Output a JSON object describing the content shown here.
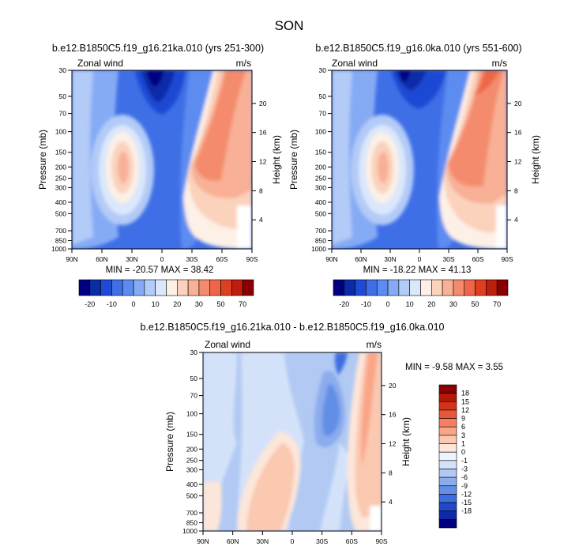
{
  "figure_title": "SON",
  "chart_data": [
    {
      "id": "panel_a",
      "type": "heatmap",
      "title": "b.e12.B1850C5.f19_g16.21ka.010 (yrs 251-300)",
      "left_label": "Zonal wind",
      "right_label": "m/s",
      "ylabel": "Pressure (mb)",
      "ylabel_right": "Height (km)",
      "x_ticks": [
        "90N",
        "60N",
        "30N",
        "0",
        "30S",
        "60S",
        "90S"
      ],
      "x_values": [
        90,
        60,
        30,
        0,
        -30,
        -60,
        -90
      ],
      "y_ticks": [
        "30",
        "50",
        "70",
        "100",
        "150",
        "200",
        "250",
        "300",
        "400",
        "500",
        "700",
        "850",
        "1000"
      ],
      "y_values": [
        30,
        50,
        70,
        100,
        150,
        200,
        250,
        300,
        400,
        500,
        700,
        850,
        1000
      ],
      "height_ticks": [
        "20",
        "16",
        "12",
        "8",
        "4"
      ],
      "height_values": [
        20,
        16,
        12,
        8,
        4
      ],
      "stats": "MIN = -20.57  MAX = 38.42",
      "min": -20.57,
      "max": 38.42,
      "features": [
        {
          "lat": 40,
          "p": 200,
          "value": 22
        },
        {
          "lat": -52,
          "p": 200,
          "value": 36
        },
        {
          "lat": -58,
          "p": 50,
          "value": 38.4
        },
        {
          "lat": 5,
          "p": 35,
          "value": -20.6
        }
      ]
    },
    {
      "id": "panel_b",
      "type": "heatmap",
      "title": "b.e12.B1850C5.f19_g16.0ka.010 (yrs 551-600)",
      "left_label": "Zonal wind",
      "right_label": "m/s",
      "ylabel": "Pressure (mb)",
      "ylabel_right": "Height (km)",
      "x_ticks": [
        "90N",
        "60N",
        "30N",
        "0",
        "30S",
        "60S",
        "90S"
      ],
      "x_values": [
        90,
        60,
        30,
        0,
        -30,
        -60,
        -90
      ],
      "y_ticks": [
        "30",
        "50",
        "70",
        "100",
        "150",
        "200",
        "250",
        "300",
        "400",
        "500",
        "700",
        "850",
        "1000"
      ],
      "y_values": [
        30,
        50,
        70,
        100,
        150,
        200,
        250,
        300,
        400,
        500,
        700,
        850,
        1000
      ],
      "height_ticks": [
        "20",
        "16",
        "12",
        "8",
        "4"
      ],
      "height_values": [
        20,
        16,
        12,
        8,
        4
      ],
      "stats": "MIN = -18.22  MAX = 41.13",
      "min": -18.22,
      "max": 41.13,
      "features": [
        {
          "lat": 40,
          "p": 200,
          "value": 22
        },
        {
          "lat": -50,
          "p": 200,
          "value": 38
        },
        {
          "lat": -60,
          "p": 50,
          "value": 41.1
        },
        {
          "lat": 5,
          "p": 35,
          "value": -18.2
        }
      ]
    },
    {
      "id": "panel_diff",
      "type": "heatmap",
      "title": "b.e12.B1850C5.f19_g16.21ka.010 - b.e12.B1850C5.f19_g16.0ka.010",
      "left_label": "Zonal wind",
      "right_label": "m/s",
      "ylabel": "Pressure (mb)",
      "ylabel_right": "Height (km)",
      "x_ticks": [
        "90N",
        "60N",
        "30N",
        "0",
        "30S",
        "60S",
        "90S"
      ],
      "x_values": [
        90,
        60,
        30,
        0,
        -30,
        -60,
        -90
      ],
      "y_ticks": [
        "30",
        "50",
        "70",
        "100",
        "150",
        "200",
        "250",
        "300",
        "400",
        "500",
        "700",
        "850",
        "1000"
      ],
      "y_values": [
        30,
        50,
        70,
        100,
        150,
        200,
        250,
        300,
        400,
        500,
        700,
        850,
        1000
      ],
      "height_ticks": [
        "20",
        "16",
        "12",
        "8",
        "4"
      ],
      "height_values": [
        20,
        16,
        12,
        8,
        4
      ],
      "stats": "MIN =  -9.58  MAX =   3.55",
      "min": -9.58,
      "max": 3.55,
      "features": [
        {
          "lat": 15,
          "p": 300,
          "value": 2
        },
        {
          "lat": -60,
          "p": 60,
          "value": 3.5
        },
        {
          "lat": -35,
          "p": 100,
          "value": -9.6
        }
      ]
    }
  ],
  "colorbar_main": {
    "labels": [
      "-20",
      "-10",
      "0",
      "10",
      "20",
      "30",
      "50",
      "70"
    ],
    "colors": [
      "#00007f",
      "#0a2ca8",
      "#1f4ad4",
      "#3f6fe6",
      "#5d8cf0",
      "#86abf5",
      "#b2cbf7",
      "#dbe7fb",
      "#fdf0e6",
      "#fbd2bc",
      "#f8b096",
      "#f48b6d",
      "#ee6647",
      "#de3f22",
      "#bc1f0c",
      "#8a0000"
    ]
  },
  "colorbar_diff": {
    "labels": [
      "18",
      "15",
      "12",
      "9",
      "6",
      "3",
      "1",
      "0",
      "-1",
      "-3",
      "-6",
      "-9",
      "-12",
      "-15",
      "-18"
    ],
    "colors": [
      "#8a0000",
      "#b1190a",
      "#d3331b",
      "#ea5636",
      "#f57f5f",
      "#f9a587",
      "#fbc8b0",
      "#fde6da",
      "#eef3fd",
      "#d4e2f9",
      "#b1c9f3",
      "#8baced",
      "#648ee6",
      "#3e6dde",
      "#2048cc",
      "#0d2aa6",
      "#00007f"
    ]
  }
}
